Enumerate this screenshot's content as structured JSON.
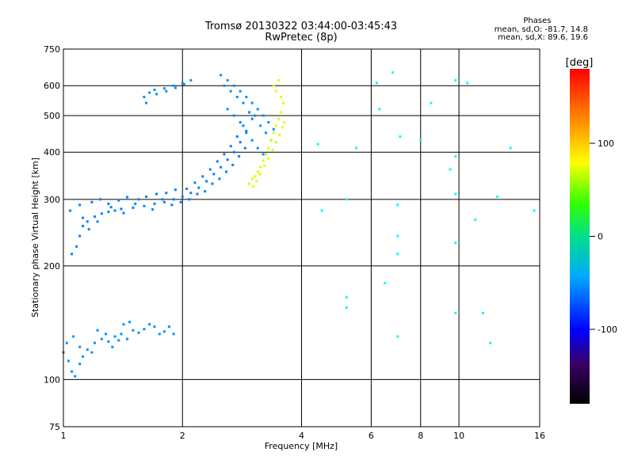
{
  "header": {
    "title": "Tromsø 20130322 03:44:00-03:45:43",
    "subtitle": "RwPretec (8p)"
  },
  "stats": {
    "heading": "Phases",
    "line_o": "mean, sd,O: -81.7, 14.8",
    "line_x": "mean, sd,X:  89.6, 19.6"
  },
  "colorbar": {
    "unit": "[deg]",
    "range": [
      -180,
      180
    ],
    "ticks": [
      {
        "value": 100,
        "label": "100"
      },
      {
        "value": 0,
        "label": "0"
      },
      {
        "value": -100,
        "label": "-100"
      }
    ]
  },
  "chart_data": {
    "type": "scatter",
    "xlabel": "Frequency [MHz]",
    "ylabel": "Stationary phase Virtual Height [km]",
    "xscale": "log",
    "yscale": "log",
    "xlim": [
      1,
      16
    ],
    "ylim": [
      75,
      750
    ],
    "grid": true,
    "x_ticks": [
      {
        "value": 1,
        "label": "1"
      },
      {
        "value": 2,
        "label": "2"
      },
      {
        "value": 4,
        "label": "4"
      },
      {
        "value": 6,
        "label": "6"
      },
      {
        "value": 8,
        "label": "8"
      },
      {
        "value": 10,
        "label": "10"
      },
      {
        "value": 16,
        "label": "16"
      }
    ],
    "x_grid": [
      2,
      4,
      6,
      8,
      10
    ],
    "y_ticks": [
      {
        "value": 75,
        "label": "75"
      },
      {
        "value": 100,
        "label": "100"
      },
      {
        "value": 200,
        "label": "200"
      },
      {
        "value": 300,
        "label": "300"
      },
      {
        "value": 400,
        "label": "400"
      },
      {
        "value": 500,
        "label": "500"
      },
      {
        "value": 600,
        "label": "600"
      },
      {
        "value": 750,
        "label": "750"
      }
    ],
    "y_grid": [
      100,
      200,
      300,
      400,
      500,
      600
    ],
    "traces": [
      {
        "name_hint": "low E-layer echoes",
        "phase": -95,
        "points": [
          [
            1.0,
            118
          ],
          [
            1.03,
            112
          ],
          [
            1.05,
            105
          ],
          [
            1.07,
            102
          ],
          [
            1.1,
            110
          ],
          [
            1.12,
            115
          ],
          [
            1.15,
            120
          ],
          [
            1.2,
            125
          ],
          [
            1.25,
            128
          ],
          [
            1.3,
            126
          ],
          [
            1.35,
            130
          ],
          [
            1.4,
            132
          ],
          [
            1.45,
            128
          ],
          [
            1.5,
            135
          ],
          [
            1.6,
            136
          ],
          [
            1.7,
            138
          ],
          [
            1.8,
            134
          ],
          [
            1.9,
            132
          ],
          [
            1.02,
            125
          ],
          [
            1.06,
            130
          ],
          [
            1.1,
            122
          ],
          [
            1.18,
            118
          ],
          [
            1.22,
            135
          ],
          [
            1.28,
            132
          ],
          [
            1.33,
            122
          ],
          [
            1.38,
            127
          ],
          [
            1.42,
            140
          ],
          [
            1.47,
            142
          ],
          [
            1.55,
            133
          ],
          [
            1.65,
            140
          ],
          [
            1.75,
            132
          ],
          [
            1.85,
            138
          ]
        ]
      },
      {
        "name_hint": "lower F trace",
        "phase": -100,
        "points": [
          [
            1.05,
            215
          ],
          [
            1.08,
            225
          ],
          [
            1.1,
            240
          ],
          [
            1.12,
            255
          ],
          [
            1.15,
            262
          ],
          [
            1.2,
            270
          ],
          [
            1.25,
            275
          ],
          [
            1.3,
            278
          ],
          [
            1.35,
            280
          ],
          [
            1.4,
            283
          ],
          [
            1.5,
            285
          ],
          [
            1.6,
            288
          ],
          [
            1.7,
            292
          ],
          [
            1.8,
            295
          ],
          [
            1.9,
            300
          ],
          [
            2.0,
            305
          ],
          [
            2.1,
            312
          ],
          [
            2.2,
            322
          ],
          [
            2.3,
            335
          ],
          [
            2.4,
            350
          ],
          [
            2.5,
            365
          ],
          [
            2.6,
            382
          ],
          [
            2.7,
            400
          ],
          [
            2.8,
            425
          ],
          [
            2.9,
            455
          ],
          [
            3.0,
            490
          ],
          [
            1.04,
            280
          ],
          [
            1.1,
            290
          ],
          [
            1.18,
            295
          ],
          [
            1.24,
            300
          ],
          [
            1.3,
            292
          ],
          [
            1.38,
            298
          ],
          [
            1.45,
            304
          ],
          [
            1.55,
            300
          ],
          [
            1.62,
            305
          ],
          [
            1.72,
            310
          ],
          [
            1.82,
            312
          ],
          [
            1.92,
            318
          ],
          [
            2.05,
            320
          ],
          [
            2.15,
            332
          ],
          [
            2.25,
            345
          ],
          [
            2.35,
            360
          ],
          [
            2.45,
            378
          ],
          [
            2.55,
            395
          ],
          [
            2.65,
            415
          ],
          [
            2.75,
            440
          ],
          [
            2.85,
            470
          ],
          [
            2.95,
            510
          ],
          [
            1.12,
            268
          ],
          [
            1.16,
            250
          ],
          [
            1.22,
            262
          ],
          [
            1.32,
            286
          ],
          [
            1.42,
            276
          ],
          [
            1.52,
            292
          ],
          [
            1.68,
            282
          ],
          [
            1.78,
            300
          ],
          [
            1.88,
            290
          ],
          [
            1.98,
            295
          ],
          [
            2.08,
            300
          ],
          [
            2.18,
            310
          ],
          [
            2.28,
            315
          ],
          [
            2.38,
            330
          ],
          [
            2.48,
            340
          ],
          [
            2.58,
            355
          ],
          [
            2.68,
            370
          ],
          [
            2.78,
            390
          ],
          [
            2.88,
            410
          ]
        ]
      },
      {
        "name_hint": "upper F trace",
        "phase": -95,
        "points": [
          [
            1.6,
            560
          ],
          [
            1.65,
            575
          ],
          [
            1.7,
            585
          ],
          [
            1.8,
            590
          ],
          [
            1.9,
            600
          ],
          [
            2.0,
            610
          ],
          [
            2.1,
            620
          ],
          [
            1.62,
            540
          ],
          [
            1.72,
            570
          ],
          [
            1.82,
            580
          ],
          [
            1.92,
            592
          ],
          [
            2.02,
            605
          ],
          [
            2.5,
            640
          ],
          [
            2.6,
            620
          ],
          [
            2.7,
            600
          ],
          [
            2.8,
            580
          ],
          [
            2.9,
            560
          ],
          [
            3.0,
            540
          ],
          [
            3.1,
            520
          ],
          [
            3.2,
            500
          ],
          [
            3.3,
            480
          ],
          [
            3.4,
            460
          ],
          [
            2.55,
            600
          ],
          [
            2.65,
            580
          ],
          [
            2.75,
            560
          ],
          [
            2.85,
            540
          ],
          [
            2.95,
            510
          ],
          [
            3.05,
            500
          ],
          [
            3.15,
            470
          ],
          [
            3.25,
            450
          ],
          [
            3.35,
            430
          ],
          [
            2.6,
            520
          ],
          [
            2.7,
            500
          ],
          [
            2.8,
            480
          ],
          [
            2.9,
            450
          ],
          [
            3.0,
            430
          ],
          [
            3.1,
            410
          ],
          [
            3.2,
            395
          ]
        ]
      },
      {
        "name_hint": "X trace",
        "phase": 90,
        "points": [
          [
            2.95,
            330
          ],
          [
            3.0,
            340
          ],
          [
            3.05,
            345
          ],
          [
            3.1,
            355
          ],
          [
            3.15,
            365
          ],
          [
            3.2,
            380
          ],
          [
            3.25,
            395
          ],
          [
            3.3,
            410
          ],
          [
            3.35,
            430
          ],
          [
            3.4,
            450
          ],
          [
            3.45,
            470
          ],
          [
            3.5,
            490
          ],
          [
            3.55,
            510
          ],
          [
            3.6,
            540
          ],
          [
            3.02,
            325
          ],
          [
            3.08,
            335
          ],
          [
            3.14,
            350
          ],
          [
            3.22,
            368
          ],
          [
            3.3,
            385
          ],
          [
            3.38,
            405
          ],
          [
            3.45,
            425
          ],
          [
            3.52,
            445
          ],
          [
            3.58,
            465
          ],
          [
            3.62,
            480
          ],
          [
            3.4,
            600
          ],
          [
            3.45,
            580
          ],
          [
            3.5,
            620
          ],
          [
            3.55,
            560
          ]
        ]
      },
      {
        "name_hint": "scattered echoes",
        "phase": -60,
        "points": [
          [
            4.5,
            280
          ],
          [
            5.2,
            300
          ],
          [
            5.2,
            165
          ],
          [
            5.2,
            155
          ],
          [
            6.2,
            610
          ],
          [
            6.5,
            180
          ],
          [
            7.0,
            290
          ],
          [
            7.0,
            240
          ],
          [
            7.0,
            215
          ],
          [
            7.0,
            130
          ],
          [
            8.5,
            540
          ],
          [
            9.8,
            620
          ],
          [
            9.8,
            390
          ],
          [
            9.8,
            310
          ],
          [
            9.8,
            230
          ],
          [
            9.8,
            150
          ],
          [
            11.5,
            150
          ],
          [
            12.0,
            125
          ],
          [
            13.5,
            410
          ],
          [
            15.5,
            280
          ],
          [
            4.4,
            420
          ],
          [
            5.5,
            410
          ],
          [
            6.3,
            520
          ],
          [
            6.8,
            650
          ],
          [
            7.1,
            440
          ],
          [
            8.0,
            430
          ],
          [
            9.5,
            360
          ],
          [
            10.5,
            610
          ],
          [
            11.0,
            265
          ],
          [
            12.5,
            305
          ]
        ]
      }
    ]
  }
}
